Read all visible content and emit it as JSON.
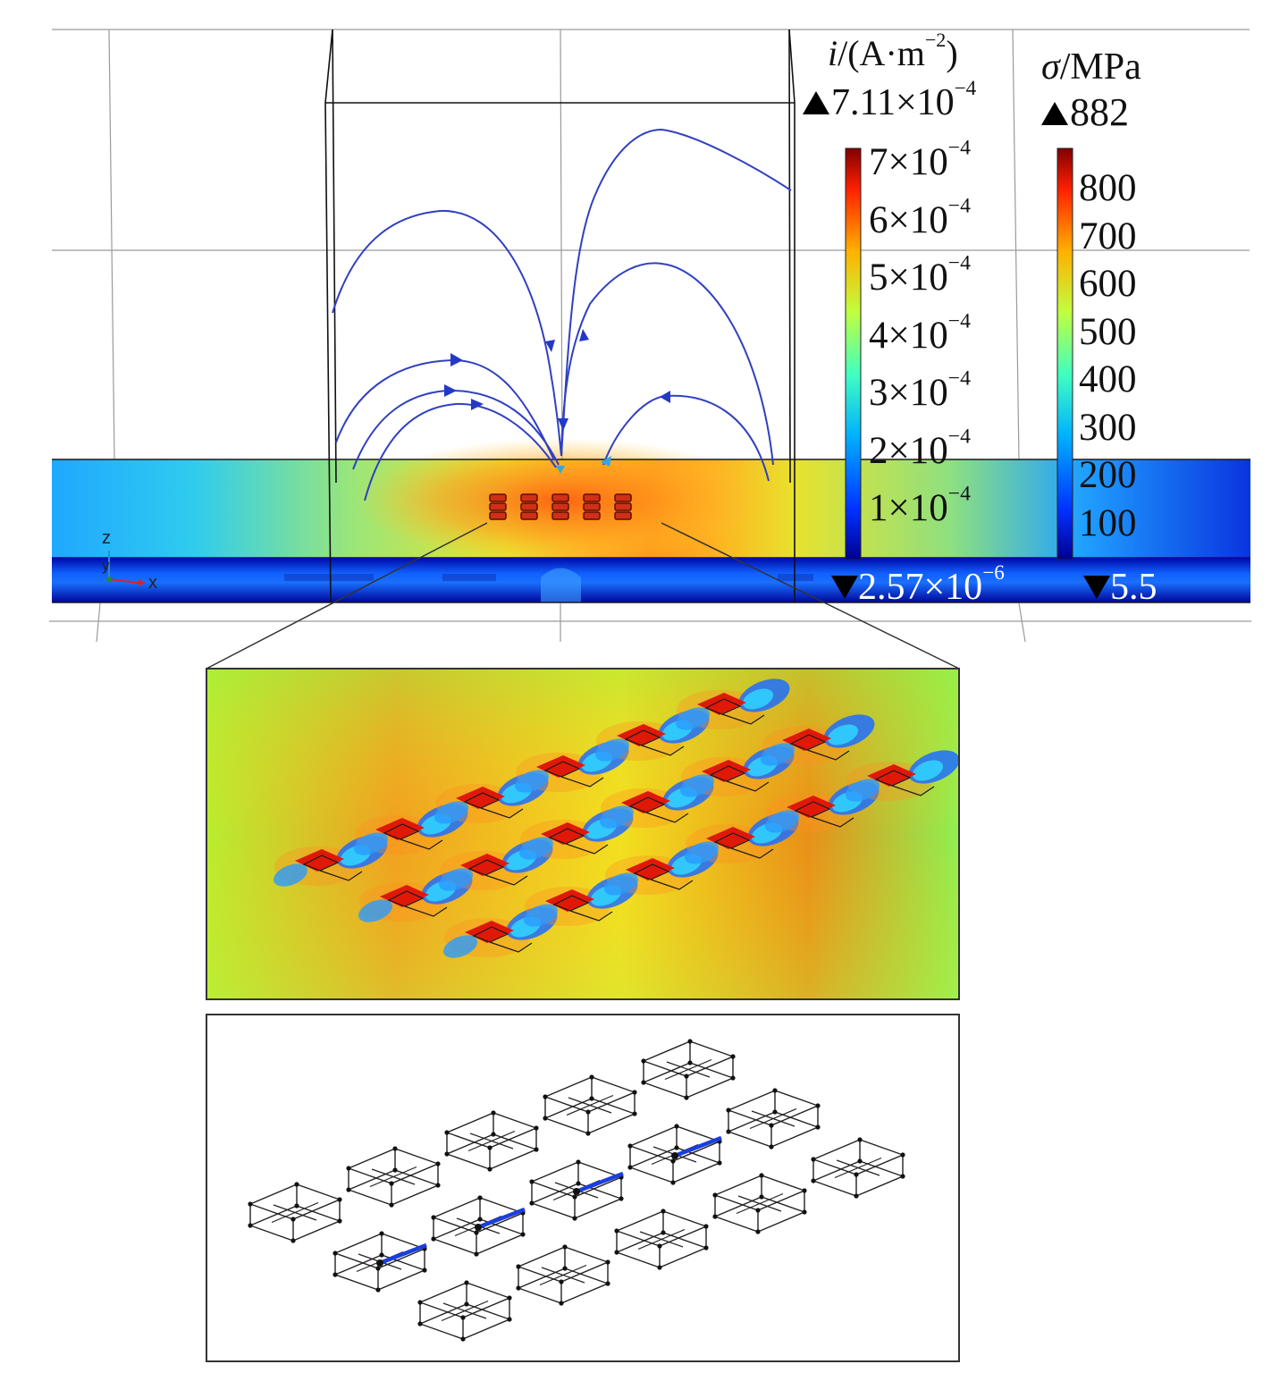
{
  "current_legend": {
    "title_var": "i",
    "title_unit_open": "/(A·m",
    "title_unit_exp": "−2",
    "title_unit_close": ")",
    "max_label": "7.11×10",
    "max_exp": "−4",
    "min_label": "2.57×10",
    "min_exp": "−6",
    "ticks": [
      {
        "mant": "7×10",
        "exp": "−4"
      },
      {
        "mant": "6×10",
        "exp": "−4"
      },
      {
        "mant": "5×10",
        "exp": "−4"
      },
      {
        "mant": "4×10",
        "exp": "−4"
      },
      {
        "mant": "3×10",
        "exp": "−4"
      },
      {
        "mant": "2×10",
        "exp": "−4"
      },
      {
        "mant": "1×10",
        "exp": "−4"
      }
    ]
  },
  "stress_legend": {
    "title_var": "σ",
    "title_unit": "/MPa",
    "max_label": "882",
    "min_label": "5.5",
    "ticks": [
      "800",
      "700",
      "600",
      "500",
      "400",
      "300",
      "200",
      "100"
    ]
  },
  "axes_triad": {
    "z": "z",
    "y": "y",
    "x": "x"
  },
  "colormap": [
    "#00008f",
    "#0040ff",
    "#00c0ff",
    "#40ffbf",
    "#bfff40",
    "#ffc000",
    "#ff4000",
    "#8f0000"
  ]
}
